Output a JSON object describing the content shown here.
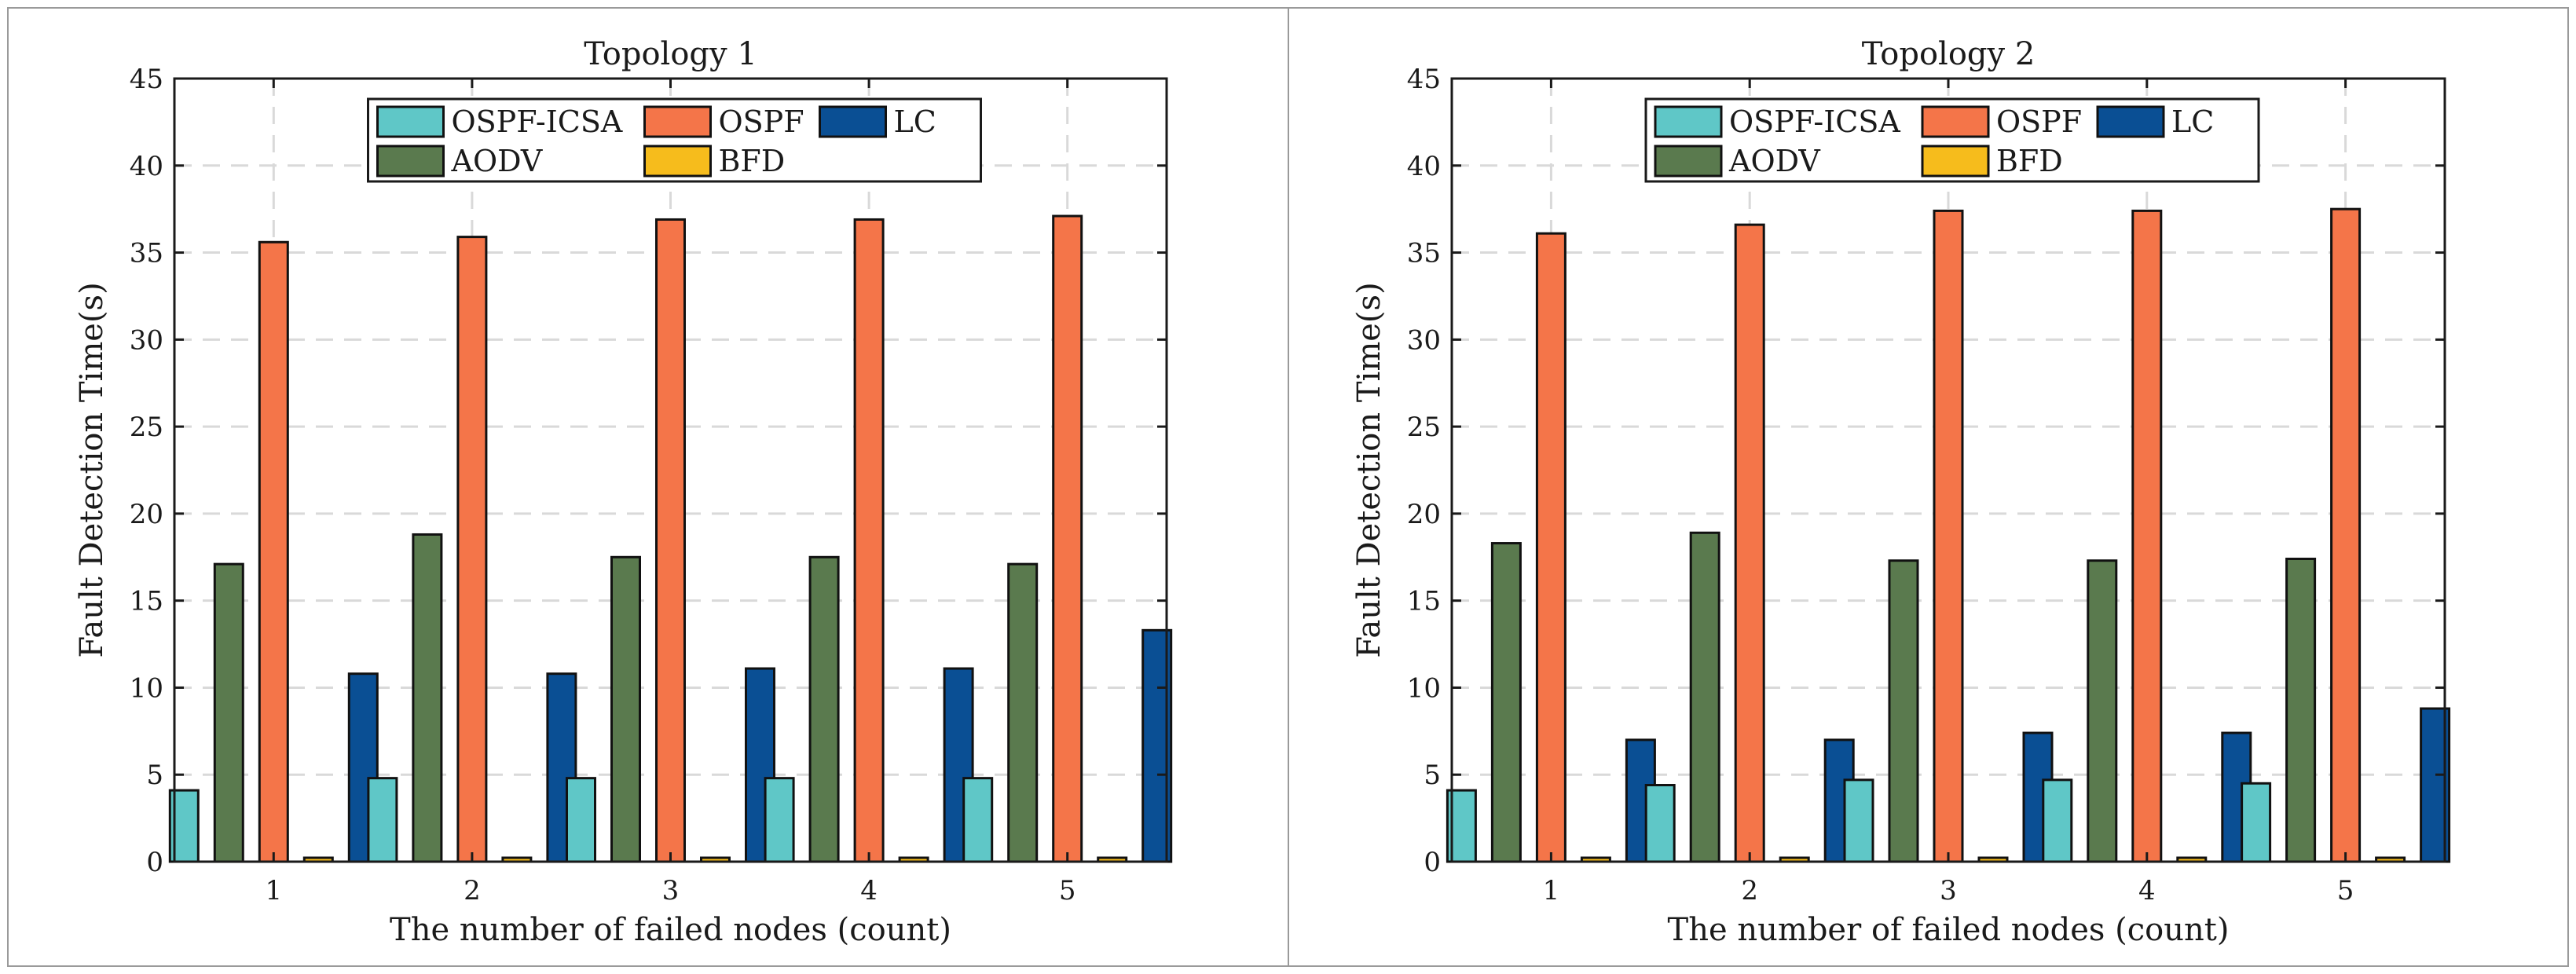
{
  "chart_data": [
    {
      "type": "bar",
      "title": "Topology 1",
      "xlabel": "The number of failed nodes (count)",
      "ylabel": "Fault Detection Time(s)",
      "categories": [
        "1",
        "2",
        "3",
        "4",
        "5"
      ],
      "ylim": [
        0,
        45
      ],
      "yticks": [
        0,
        5,
        10,
        15,
        20,
        25,
        30,
        35,
        40,
        45
      ],
      "grid": true,
      "legend_position": "top-center",
      "series": [
        {
          "name": "OSPF-ICSA",
          "color": "#5fc7c7",
          "values": [
            4.1,
            4.8,
            4.8,
            4.8,
            4.8
          ]
        },
        {
          "name": "AODV",
          "color": "#5a7a4e",
          "values": [
            17.1,
            18.8,
            17.5,
            17.5,
            17.1
          ]
        },
        {
          "name": "OSPF",
          "color": "#f47549",
          "values": [
            35.6,
            35.9,
            36.9,
            36.9,
            37.1
          ]
        },
        {
          "name": "BFD",
          "color": "#f6bc1c",
          "values": [
            0.1,
            0.1,
            0.1,
            0.1,
            0.1
          ]
        },
        {
          "name": "LC",
          "color": "#0a4f94",
          "values": [
            10.8,
            10.8,
            11.1,
            11.1,
            13.3
          ]
        }
      ]
    },
    {
      "type": "bar",
      "title": "Topology 2",
      "xlabel": "The number of failed nodes (count)",
      "ylabel": "Fault Detection Time(s)",
      "categories": [
        "1",
        "2",
        "3",
        "4",
        "5"
      ],
      "ylim": [
        0,
        45
      ],
      "yticks": [
        0,
        5,
        10,
        15,
        20,
        25,
        30,
        35,
        40,
        45
      ],
      "grid": true,
      "legend_position": "top-center",
      "series": [
        {
          "name": "OSPF-ICSA",
          "color": "#5fc7c7",
          "values": [
            4.1,
            4.4,
            4.7,
            4.7,
            4.5
          ]
        },
        {
          "name": "AODV",
          "color": "#5a7a4e",
          "values": [
            18.3,
            18.9,
            17.3,
            17.3,
            17.4
          ]
        },
        {
          "name": "OSPF",
          "color": "#f47549",
          "values": [
            36.1,
            36.6,
            37.4,
            37.4,
            37.5
          ]
        },
        {
          "name": "BFD",
          "color": "#f6bc1c",
          "values": [
            0.1,
            0.1,
            0.1,
            0.1,
            0.1
          ]
        },
        {
          "name": "LC",
          "color": "#0a4f94",
          "values": [
            7.0,
            7.0,
            7.4,
            7.4,
            8.8
          ]
        }
      ]
    }
  ],
  "legend_order": [
    "OSPF-ICSA",
    "OSPF",
    "LC",
    "AODV",
    "BFD"
  ]
}
